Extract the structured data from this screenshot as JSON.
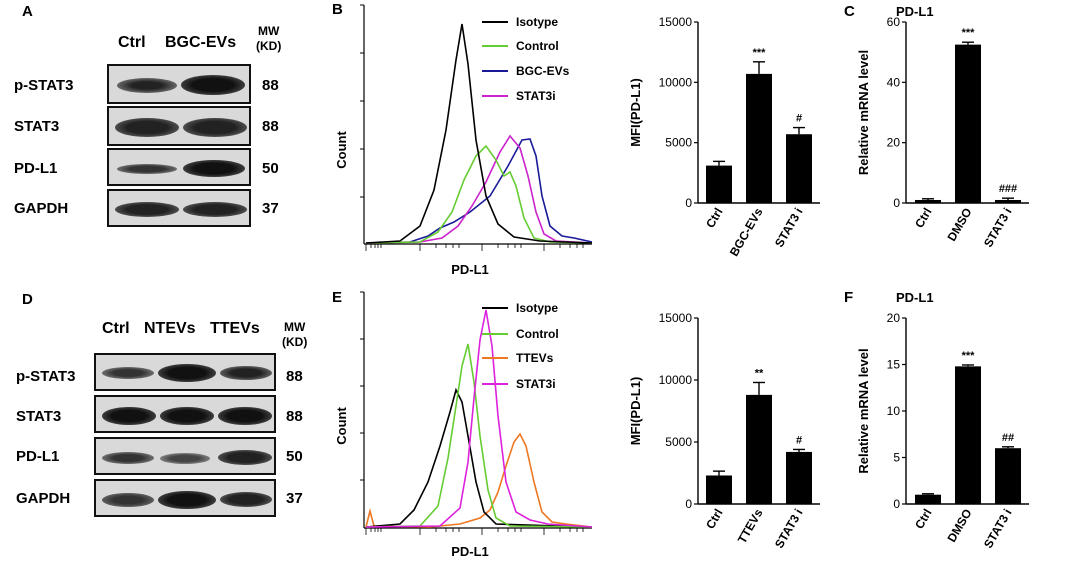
{
  "figure": {
    "panel_a": {
      "letter": "A",
      "lanes": [
        "Ctrl",
        "BGC-EVs"
      ],
      "mw_title_line1": "MW",
      "mw_title_line2": "(KD)",
      "rows": [
        {
          "protein": "p-STAT3",
          "mw": "88"
        },
        {
          "protein": "STAT3",
          "mw": "88"
        },
        {
          "protein": "PD-L1",
          "mw": "50"
        },
        {
          "protein": "GAPDH",
          "mw": "37"
        }
      ]
    },
    "panel_d": {
      "letter": "D",
      "lanes": [
        "Ctrl",
        "NTEVs",
        "TTEVs"
      ],
      "mw_title_line1": "MW",
      "mw_title_line2": "(KD)",
      "rows": [
        {
          "protein": "p-STAT3",
          "mw": "88"
        },
        {
          "protein": "STAT3",
          "mw": "88"
        },
        {
          "protein": "PD-L1",
          "mw": "50"
        },
        {
          "protein": "GAPDH",
          "mw": "37"
        }
      ]
    },
    "panel_b": {
      "letter": "B",
      "ylabel": "Count",
      "xlabel": "PD-L1",
      "legend": [
        {
          "label": "Isotype",
          "color": "#000000"
        },
        {
          "label": "Control",
          "color": "#66cc33"
        },
        {
          "label": "BGC-EVs",
          "color": "#1a1a99"
        },
        {
          "label": "STAT3i",
          "color": "#cc22cc"
        }
      ]
    },
    "panel_e": {
      "letter": "E",
      "ylabel": "Count",
      "xlabel": "PD-L1",
      "legend": [
        {
          "label": "Isotype",
          "color": "#000000"
        },
        {
          "label": "Control",
          "color": "#66cc33"
        },
        {
          "label": "TTEVs",
          "color": "#ee7722"
        },
        {
          "label": "STAT3i",
          "color": "#dd22dd"
        }
      ]
    }
  },
  "chart_data": [
    {
      "id": "mfi_top",
      "type": "bar",
      "title": "",
      "ylabel": "MFI(PD-L1)",
      "xlabel": "",
      "categories": [
        "Ctrl",
        "BGC-EVs",
        "STAT3 i"
      ],
      "values": [
        3100,
        10700,
        5700
      ],
      "errors": [
        350,
        1000,
        550
      ],
      "significance": [
        "",
        "***",
        "#"
      ],
      "ylim": [
        0,
        15000
      ],
      "yticks": [
        "0",
        "5000",
        "10000",
        "15000"
      ]
    },
    {
      "id": "mrna_top",
      "type": "bar",
      "title": "PD-L1",
      "letter": "C",
      "ylabel": "Relative mRNA level",
      "xlabel": "",
      "categories": [
        "Ctrl",
        "DMSO",
        "STAT3 i"
      ],
      "values": [
        1,
        52.5,
        1
      ],
      "errors": [
        0.4,
        0.8,
        0.6
      ],
      "significance": [
        "",
        "***",
        "###"
      ],
      "ylim": [
        0,
        60
      ],
      "yticks": [
        "0",
        "20",
        "40",
        "60"
      ]
    },
    {
      "id": "mfi_bottom",
      "type": "bar",
      "title": "",
      "ylabel": "MFI(PD-L1)",
      "xlabel": "",
      "categories": [
        "Ctrl",
        "TTEVs",
        "STAT3 i"
      ],
      "values": [
        2300,
        8800,
        4200
      ],
      "errors": [
        350,
        1000,
        200
      ],
      "significance": [
        "",
        "**",
        "#"
      ],
      "ylim": [
        0,
        15000
      ],
      "yticks": [
        "0",
        "5000",
        "10000",
        "15000"
      ]
    },
    {
      "id": "mrna_bottom",
      "type": "bar",
      "title": "PD-L1",
      "letter": "F",
      "ylabel": "Relative mRNA level",
      "xlabel": "",
      "categories": [
        "Ctrl",
        "DMSO",
        "STAT3 i"
      ],
      "values": [
        1,
        14.8,
        6
      ],
      "errors": [
        0.1,
        0.15,
        0.15
      ],
      "significance": [
        "",
        "***",
        "##"
      ],
      "ylim": [
        0,
        20
      ],
      "yticks": [
        "0",
        "5",
        "10",
        "15",
        "20"
      ]
    }
  ]
}
